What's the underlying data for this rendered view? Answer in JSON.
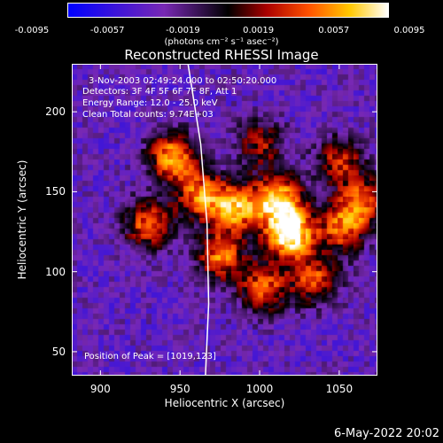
{
  "chart_data": {
    "type": "heatmap",
    "title": "Reconstructed RHESSI Image",
    "xlabel": "Heliocentric X (arcsec)",
    "ylabel": "Heliocentric Y (arcsec)",
    "xlim": [
      882,
      1074
    ],
    "ylim": [
      35,
      230
    ],
    "x_ticks": [
      900,
      950,
      1000,
      1050
    ],
    "y_ticks": [
      50,
      100,
      150,
      200
    ],
    "colorbar": {
      "ticks": [
        "-0.0095",
        "-0.0057",
        "-0.0019",
        "0.0019",
        "0.0057",
        "0.0095"
      ],
      "range": [
        -0.0095,
        0.0095
      ],
      "units": "(photons cm⁻² s⁻¹ asec⁻²)"
    },
    "annotations": [
      "3-Nov-2003 02:49:24.000 to 02:50:20.000",
      "Detectors: 3F 4F 5F 6F 7F 8F, Att 1",
      "Energy Range: 12.0 - 25.0 keV",
      "Clean     Total counts: 9.74E+03"
    ],
    "peak_label": "Position of Peak = [1019,123]",
    "peak_position": [
      1019,
      123
    ],
    "sources": [
      {
        "x": 1019,
        "y": 123,
        "value": 0.0095
      },
      {
        "x": 1012,
        "y": 145,
        "value": 0.0075
      },
      {
        "x": 985,
        "y": 140,
        "value": 0.006
      },
      {
        "x": 945,
        "y": 172,
        "value": 0.0065
      },
      {
        "x": 963,
        "y": 148,
        "value": 0.005
      },
      {
        "x": 930,
        "y": 130,
        "value": 0.005
      },
      {
        "x": 975,
        "y": 110,
        "value": 0.005
      },
      {
        "x": 1002,
        "y": 90,
        "value": 0.0045
      },
      {
        "x": 1035,
        "y": 95,
        "value": 0.004
      },
      {
        "x": 1052,
        "y": 128,
        "value": 0.0045
      },
      {
        "x": 1050,
        "y": 170,
        "value": 0.003
      },
      {
        "x": 1065,
        "y": 145,
        "value": 0.004
      },
      {
        "x": 1000,
        "y": 180,
        "value": 0.002
      }
    ],
    "limb_curve": [
      [
        955,
        230
      ],
      [
        963,
        180
      ],
      [
        967,
        130
      ],
      [
        968,
        80
      ],
      [
        966,
        35
      ]
    ]
  },
  "footer_date": "6-May-2022 20:02",
  "colors": {
    "background": "#000000",
    "text": "#ffffff",
    "limb": "#ffffff"
  }
}
